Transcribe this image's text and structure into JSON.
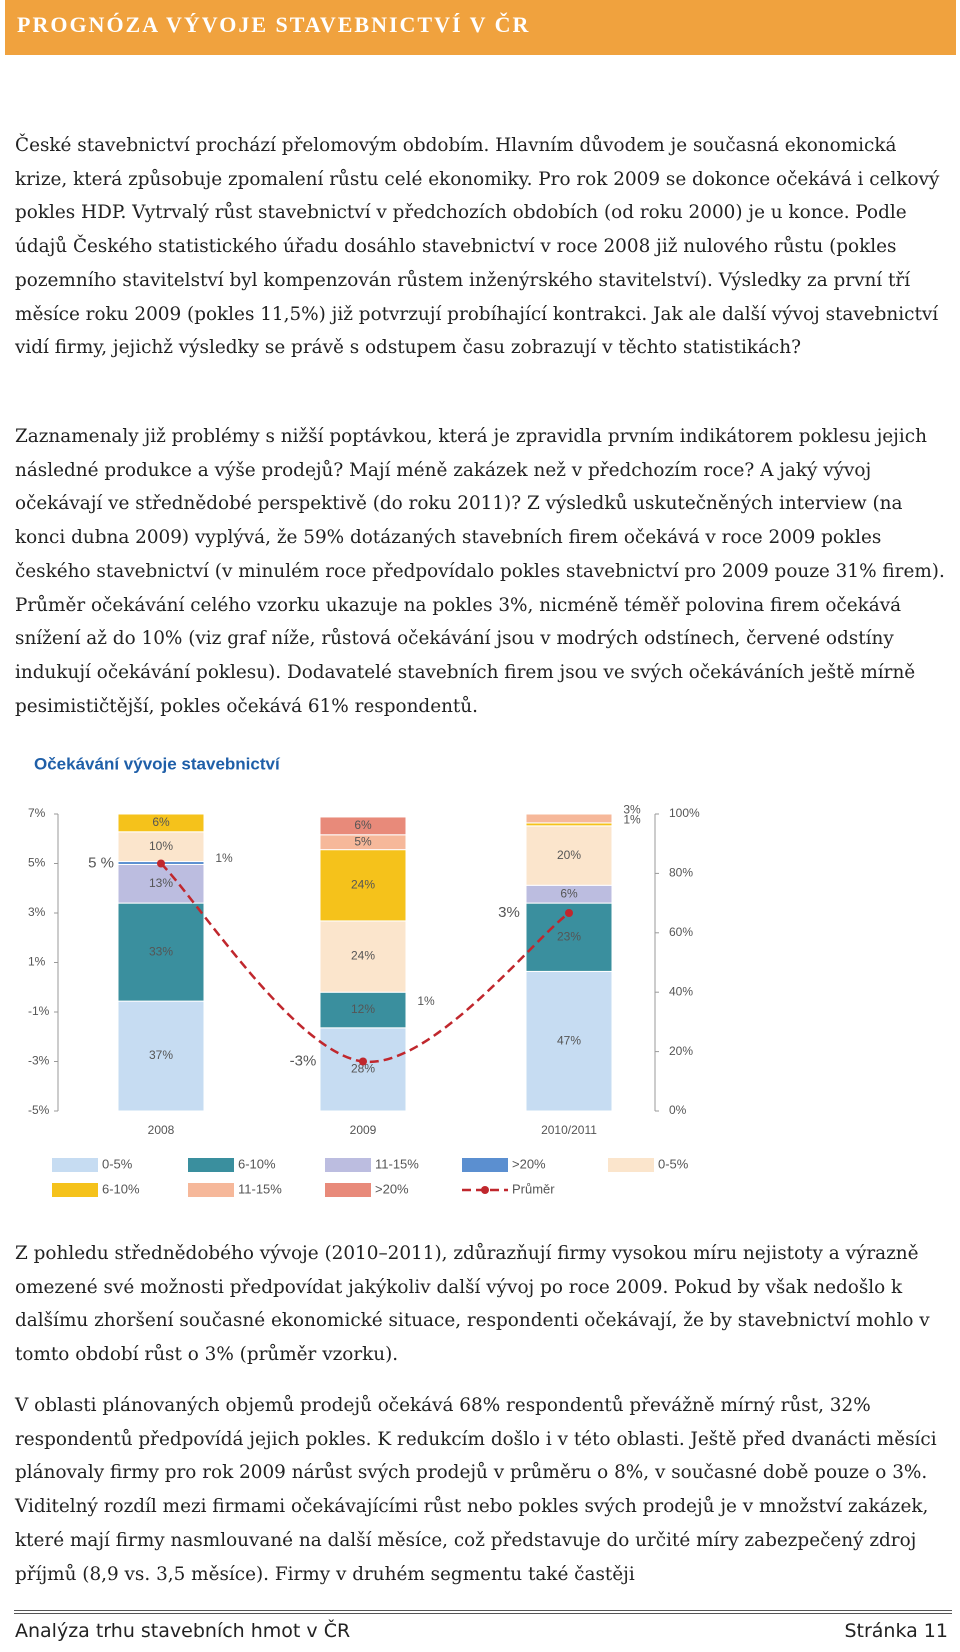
{
  "header": {
    "title": "PROGNÓZA VÝVOJE STAVEBNICTVÍ V ČR"
  },
  "paragraphs": [
    "České stavebnictví prochází přelomovým obdobím. Hlavním důvodem je současná ekonomická krize, která způsobuje zpomalení růstu celé ekonomiky. Pro rok 2009 se dokonce očekává i celkový pokles HDP. Vytrvalý růst stavebnictví v předchozích obdobích (od roku 2000) je u konce. Podle údajů Českého statistického úřadu dosáhlo stavebnictví v roce 2008 již nulového růstu (pokles pozemního stavitelství byl kompenzován růstem inženýrského stavitelství). Výsledky za první tří měsíce roku 2009 (pokles 11,5%) již potvrzují probíhající kontrakci. Jak ale další vývoj stavebnictví vidí firmy, jejichž výsledky se právě s odstupem času zobrazují v těchto statistikách?",
    "Zaznamenaly již problémy s nižší poptávkou, která je zpravidla prvním indikátorem poklesu jejich následné produkce a výše prodejů? Mají méně zakázek než v předchozím roce? A jaký vývoj očekávají ve střednědobé perspektivě (do roku 2011)? Z výsledků uskutečněných interview (na konci dubna 2009) vyplývá, že 59% dotázaných stavebních firem očekává v roce 2009 pokles českého stavebnictví (v minulém roce předpovídalo pokles stavebnictví pro 2009 pouze 31% firem). Průměr očekávání celého vzorku ukazuje na pokles 3%, nicméně téměř polovina firem očekává snížení až do 10% (viz graf níže, růstová očekávání jsou v modrých odstínech, červené odstíny indukují očekávání poklesu). Dodavatelé stavebních firem jsou ve svých očekáváních ještě mírně pesimističtější, pokles očekává 61% respondentů.",
    "Z pohledu střednědobého vývoje (2010–2011), zdůrazňují firmy vysokou míru nejistoty a výrazně omezené své možnosti předpovídat jakýkoliv další vývoj po roce 2009. Pokud by však nedošlo k dalšímu zhoršení současné ekonomické situace, respondenti očekávají, že by stavebnictví mohlo v tomto období růst o 3% (průměr vzorku).",
    "V oblasti plánovaných objemů prodejů očekává 68% respondentů převážně mírný růst, 32% respondentů předpovídá jejich pokles. K redukcím došlo i v této oblasti. Ještě před dvanácti měsíci plánovaly firmy pro rok 2009 nárůst svých prodejů v průměru o 8%, v současné době pouze o 3%. Viditelný rozdíl mezi firmami očekávajícími růst nebo pokles svých prodejů je v množství zakázek, které mají firmy nasmlouvané na další měsíce, což představuje do určité míry zabezpečený zdroj příjmů (8,9 vs. 3,5 měsíce). Firmy v druhém segmentu také častěji"
  ],
  "chart_data": {
    "type": "bar",
    "stacked": true,
    "title": "Očekávání vývoje stavebnictví",
    "categories": [
      "2008",
      "2009",
      "2010/2011"
    ],
    "ylim": [
      -5,
      7
    ],
    "yticks": [
      {
        "value": -5,
        "label": "-5%"
      },
      {
        "value": -3,
        "label": "-3%"
      },
      {
        "value": -1,
        "label": "-1%"
      },
      {
        "value": 1,
        "label": "1%"
      },
      {
        "value": 3,
        "label": "3%"
      },
      {
        "value": 5,
        "label": "5%"
      },
      {
        "value": 7,
        "label": "7%"
      }
    ],
    "y2lim": [
      0,
      100
    ],
    "y2ticks": [
      {
        "value": 0,
        "label": "0%"
      },
      {
        "value": 20,
        "label": "20%"
      },
      {
        "value": 40,
        "label": "40%"
      },
      {
        "value": 60,
        "label": "60%"
      },
      {
        "value": 80,
        "label": "80%"
      },
      {
        "value": 100,
        "label": "100%"
      }
    ],
    "series": [
      {
        "name": "0-5%",
        "color": "#c6dcf2",
        "axis": "y2",
        "values": [
          37,
          28,
          47
        ],
        "value_labels": [
          "37%",
          "28%",
          "47%"
        ]
      },
      {
        "name": "6-10%",
        "color": "#3a8f9e",
        "axis": "y2",
        "values": [
          33,
          12,
          23
        ],
        "value_labels": [
          "33%",
          "12%",
          "23%"
        ]
      },
      {
        "name": "11-15%",
        "color": "#bcbde0",
        "axis": "y2",
        "values": [
          13,
          null,
          6
        ],
        "value_labels": [
          "13%",
          null,
          "6%"
        ]
      },
      {
        "name": ">20%",
        "color": "#5b8fd0",
        "axis": "y2",
        "values": [
          1,
          null,
          null
        ],
        "value_labels": [
          "1%",
          null,
          null
        ]
      },
      {
        "name": "0-5%",
        "color": "#fbe5cc",
        "axis": "y2",
        "values": [
          10,
          24,
          20
        ],
        "value_labels": [
          "10%",
          "24%",
          "20%"
        ]
      },
      {
        "name": "6-10%",
        "color": "#f5c21b",
        "axis": "y2",
        "values": [
          6,
          24,
          1
        ],
        "value_labels": [
          "6%",
          "24%",
          "1%"
        ]
      },
      {
        "name": "11-15%",
        "color": "#f6b89a",
        "axis": "y2",
        "values": [
          null,
          5,
          3
        ],
        "value_labels": [
          null,
          "5%",
          "3%"
        ]
      },
      {
        "name": ">20%",
        "color": "#e88a7a",
        "axis": "y2",
        "values": [
          null,
          6,
          null
        ],
        "value_labels": [
          null,
          "6%",
          null
        ]
      },
      {
        "name": "Průměr",
        "type": "line",
        "color": "#c0272d",
        "axis": "y",
        "values": [
          5,
          -3,
          3
        ],
        "value_labels": [
          "5 %",
          "-3%",
          "3%"
        ]
      }
    ],
    "annotations": [
      "1%"
    ]
  },
  "footer": {
    "left": "Analýza trhu stavebních hmot v ČR",
    "right": "Stránka 11"
  }
}
